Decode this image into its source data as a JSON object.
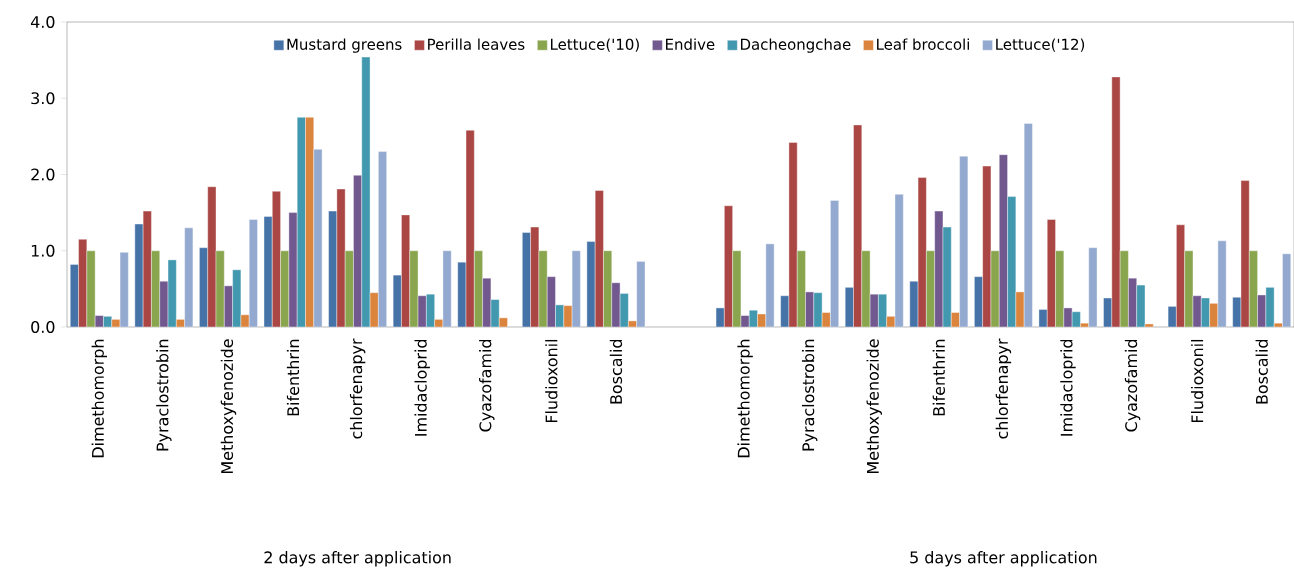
{
  "chart_data": {
    "type": "bar",
    "legend": "top",
    "categories": [
      "Dimethomorph",
      "Pyraclostrobin",
      "Methoxyfenozide",
      "Bifenthrin",
      "chlorfenapyr",
      "Imidacloprid",
      "Cyazofamid",
      "Fludioxonil",
      "Boscalid",
      null,
      "Dimethomorph",
      "Pyraclostrobin",
      "Methoxyfenozide",
      "Bifenthrin",
      "chlorfenapyr",
      "Imidacloprid",
      "Cyazofamid",
      "Fludioxonil",
      "Boscalid"
    ],
    "ylim": [
      0,
      4
    ],
    "yticks": [
      {
        "value": 0,
        "label": "0.0"
      },
      {
        "value": 1,
        "label": "1.0"
      },
      {
        "value": 2,
        "label": "2.0"
      },
      {
        "value": 3,
        "label": "3.0"
      },
      {
        "value": 4,
        "label": "4.0"
      }
    ],
    "annotations": [
      "2 days after application",
      "5 days after application"
    ],
    "series": [
      {
        "name": "Mustard greens",
        "color": "#4572a7",
        "values": [
          0.82,
          1.35,
          1.04,
          1.45,
          1.52,
          0.68,
          0.85,
          1.24,
          1.12,
          null,
          0.25,
          0.41,
          0.52,
          0.6,
          0.66,
          0.23,
          0.38,
          0.27,
          0.39
        ]
      },
      {
        "name": "Perilla leaves",
        "color": "#aa4643",
        "values": [
          1.15,
          1.52,
          1.84,
          1.78,
          1.81,
          1.47,
          2.58,
          1.31,
          1.79,
          null,
          1.59,
          2.42,
          2.65,
          1.96,
          2.11,
          1.41,
          3.28,
          1.34,
          1.92
        ]
      },
      {
        "name": "Lettuce('10)",
        "color": "#89a54e",
        "values": [
          1.0,
          1.0,
          1.0,
          1.0,
          1.0,
          1.0,
          1.0,
          1.0,
          1.0,
          null,
          1.0,
          1.0,
          1.0,
          1.0,
          1.0,
          1.0,
          1.0,
          1.0,
          1.0
        ]
      },
      {
        "name": "Endive",
        "color": "#71588f",
        "values": [
          0.15,
          0.6,
          0.54,
          1.5,
          1.99,
          0.41,
          0.64,
          0.66,
          0.58,
          null,
          0.15,
          0.46,
          0.43,
          1.52,
          2.26,
          0.25,
          0.64,
          0.41,
          0.42
        ]
      },
      {
        "name": "Dacheongchae",
        "color": "#4198af",
        "values": [
          0.14,
          0.88,
          0.75,
          2.75,
          3.54,
          0.43,
          0.36,
          0.29,
          0.44,
          null,
          0.22,
          0.45,
          0.43,
          1.31,
          1.71,
          0.2,
          0.55,
          0.38,
          0.52
        ]
      },
      {
        "name": "Leaf broccoli",
        "color": "#db843d",
        "values": [
          0.1,
          0.1,
          0.16,
          2.75,
          0.45,
          0.1,
          0.12,
          0.28,
          0.08,
          null,
          0.17,
          0.19,
          0.14,
          0.19,
          0.46,
          0.05,
          0.04,
          0.31,
          0.05
        ]
      },
      {
        "name": "Lettuce('12)",
        "color": "#93a9cf",
        "values": [
          0.98,
          1.3,
          1.41,
          2.33,
          2.3,
          1.0,
          null,
          1.0,
          0.86,
          null,
          1.09,
          1.66,
          1.74,
          2.24,
          2.67,
          1.04,
          null,
          1.13,
          0.96
        ]
      }
    ]
  }
}
